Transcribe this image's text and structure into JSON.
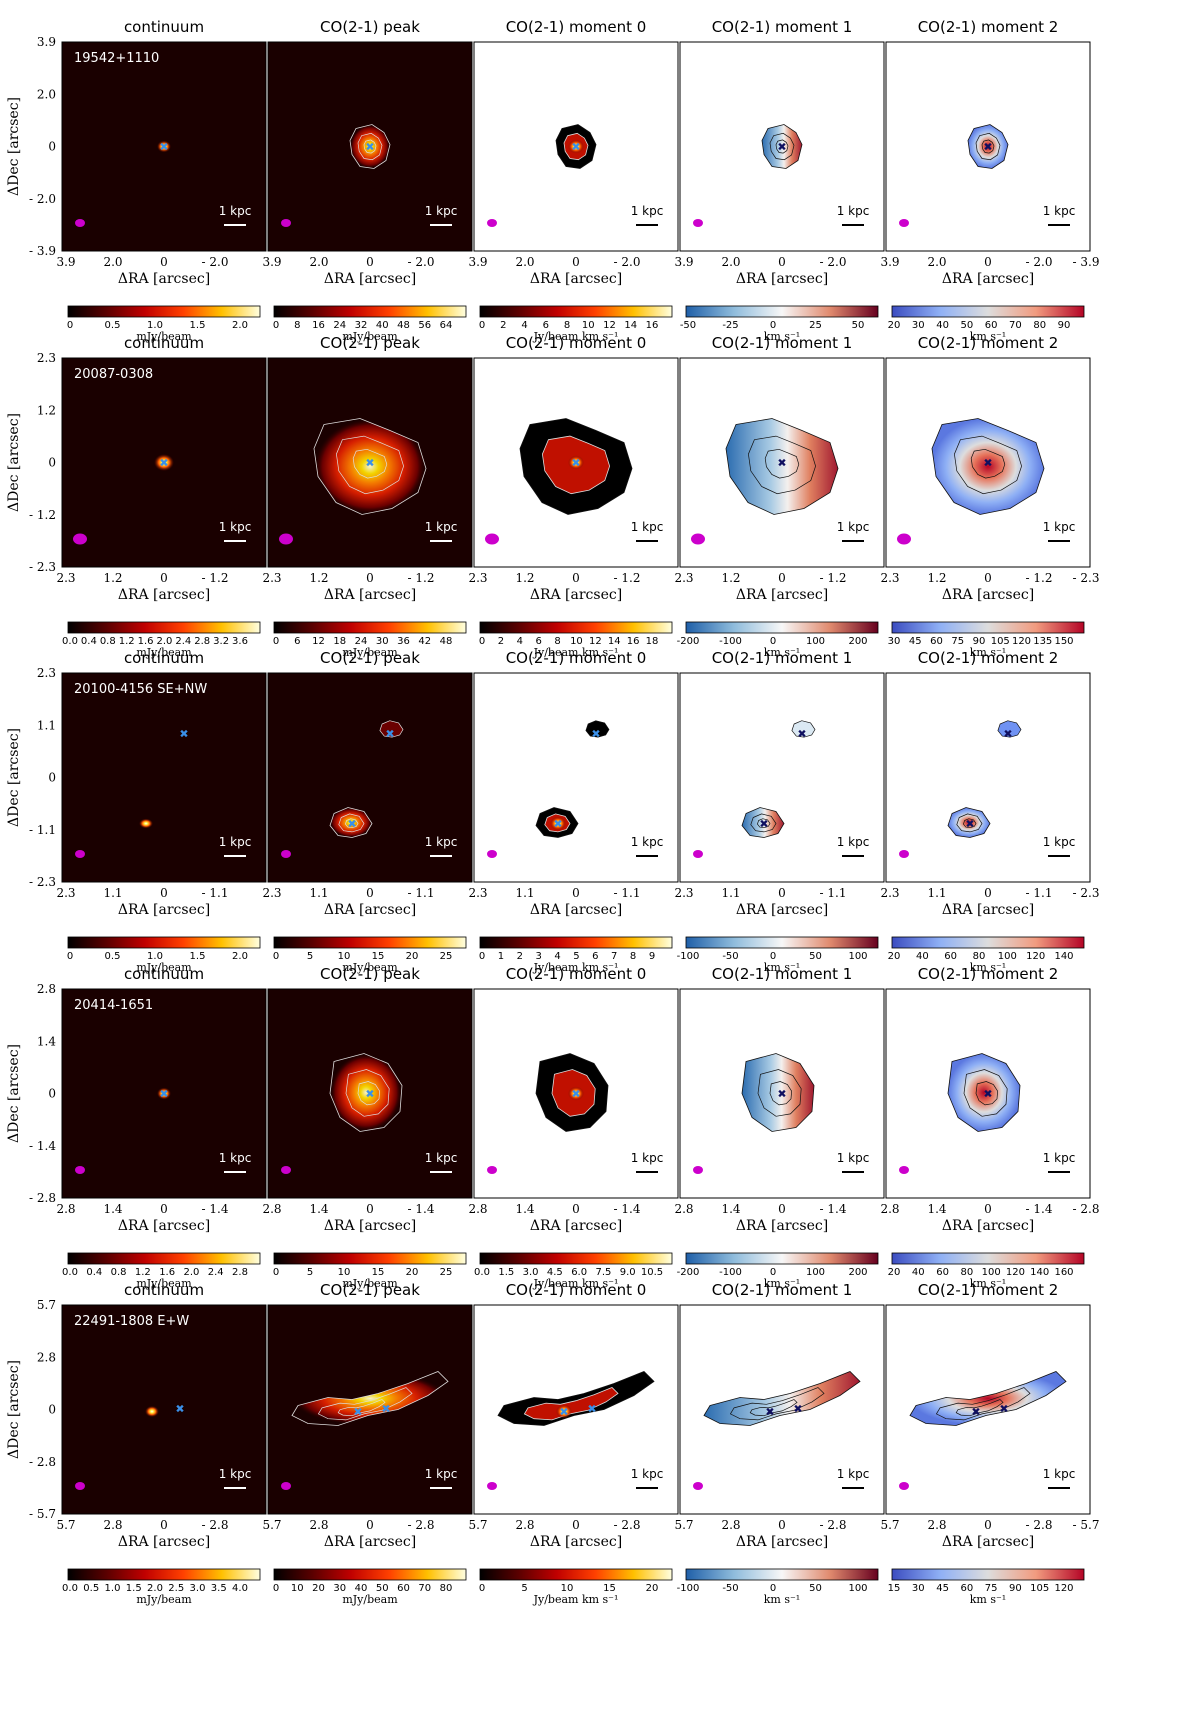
{
  "figure": {
    "panel_titles": [
      "continuum",
      "CO(2-1) peak",
      "CO(2-1) moment 0",
      "CO(2-1) moment 1",
      "CO(2-1) moment 2"
    ],
    "x_axis_label": "ΔRA [arcsec]",
    "y_axis_label": "ΔDec [arcsec]",
    "scale_bar_label": "1 kpc",
    "colormaps": {
      "hot": [
        "#000000",
        "#4a0000",
        "#b00000",
        "#ff3000",
        "#ff9000",
        "#ffe000",
        "#ffffe0"
      ],
      "rdbu": [
        "#1f5fa8",
        "#6fa3cf",
        "#dbe9f3",
        "#f7f7f7",
        "#f5cbb0",
        "#d6604d",
        "#67001f"
      ],
      "coolwarm": [
        "#3b4cc0",
        "#6f92f3",
        "#aac7fd",
        "#dddddd",
        "#f7b89c",
        "#e7745b",
        "#b40426"
      ]
    }
  },
  "chart_data": [
    {
      "type": "image-grid-row",
      "source": "19542+1110",
      "axis_ticks": {
        "x": [
          "3.9",
          "2.0",
          "0",
          "- 2.0",
          "- 3.9"
        ],
        "y": [
          "3.9",
          "2.0",
          "0",
          "- 2.0",
          "- 3.9"
        ]
      },
      "last_x_tick": "- 3.9",
      "colorbars": [
        {
          "label": "mJy/beam",
          "ticks": [
            "0",
            "0.5",
            "1.0",
            "1.5",
            "2.0"
          ]
        },
        {
          "label": "mJy/beam",
          "ticks": [
            "0",
            "8",
            "16",
            "24",
            "32",
            "40",
            "48",
            "56",
            "64"
          ]
        },
        {
          "label": "Jy/beam km s⁻¹",
          "ticks": [
            "0",
            "2",
            "4",
            "6",
            "8",
            "10",
            "12",
            "14",
            "16"
          ]
        },
        {
          "label": "km s⁻¹",
          "ticks": [
            "-50",
            "-25",
            "0",
            "25",
            "50"
          ]
        },
        {
          "label": "km s⁻¹",
          "ticks": [
            "20",
            "30",
            "40",
            "50",
            "60",
            "70",
            "80",
            "90"
          ]
        }
      ]
    },
    {
      "type": "image-grid-row",
      "source": "20087-0308",
      "axis_ticks": {
        "x": [
          "2.3",
          "1.2",
          "0",
          "- 1.2",
          "- 2.3"
        ],
        "y": [
          "2.3",
          "1.2",
          "0",
          "- 1.2",
          "- 2.3"
        ]
      },
      "last_x_tick": "- 2.3",
      "colorbars": [
        {
          "label": "mJy/beam",
          "ticks": [
            "0.0",
            "0.4",
            "0.8",
            "1.2",
            "1.6",
            "2.0",
            "2.4",
            "2.8",
            "3.2",
            "3.6"
          ]
        },
        {
          "label": "mJy/beam",
          "ticks": [
            "0",
            "6",
            "12",
            "18",
            "24",
            "30",
            "36",
            "42",
            "48"
          ]
        },
        {
          "label": "Jy/beam km s⁻¹",
          "ticks": [
            "0",
            "2",
            "4",
            "6",
            "8",
            "10",
            "12",
            "14",
            "16",
            "18"
          ]
        },
        {
          "label": "km s⁻¹",
          "ticks": [
            "-200",
            "-100",
            "0",
            "100",
            "200"
          ]
        },
        {
          "label": "km s⁻¹",
          "ticks": [
            "30",
            "45",
            "60",
            "75",
            "90",
            "105",
            "120",
            "135",
            "150"
          ]
        }
      ]
    },
    {
      "type": "image-grid-row",
      "source": "20100-4156 SE+NW",
      "axis_ticks": {
        "x": [
          "2.3",
          "1.1",
          "0",
          "- 1.1",
          "- 2.3"
        ],
        "y": [
          "2.3",
          "1.1",
          "0",
          "- 1.1",
          "- 2.3"
        ]
      },
      "last_x_tick": "- 2.3",
      "colorbars": [
        {
          "label": "mJy/beam",
          "ticks": [
            "0",
            "0.5",
            "1.0",
            "1.5",
            "2.0"
          ]
        },
        {
          "label": "mJy/beam",
          "ticks": [
            "0",
            "5",
            "10",
            "15",
            "20",
            "25"
          ]
        },
        {
          "label": "Jy/beam km s⁻¹",
          "ticks": [
            "0",
            "1",
            "2",
            "3",
            "4",
            "5",
            "6",
            "7",
            "8",
            "9"
          ]
        },
        {
          "label": "km s⁻¹",
          "ticks": [
            "-100",
            "-50",
            "0",
            "50",
            "100"
          ]
        },
        {
          "label": "km s⁻¹",
          "ticks": [
            "20",
            "40",
            "60",
            "80",
            "100",
            "120",
            "140"
          ]
        }
      ]
    },
    {
      "type": "image-grid-row",
      "source": "20414-1651",
      "axis_ticks": {
        "x": [
          "2.8",
          "1.4",
          "0",
          "- 1.4",
          "- 2.8"
        ],
        "y": [
          "2.8",
          "1.4",
          "0",
          "- 1.4",
          "- 2.8"
        ]
      },
      "last_x_tick": "- 2.8",
      "colorbars": [
        {
          "label": "mJy/beam",
          "ticks": [
            "0.0",
            "0.4",
            "0.8",
            "1.2",
            "1.6",
            "2.0",
            "2.4",
            "2.8"
          ]
        },
        {
          "label": "mJy/beam",
          "ticks": [
            "0",
            "5",
            "10",
            "15",
            "20",
            "25"
          ]
        },
        {
          "label": "Jy/beam km s⁻¹",
          "ticks": [
            "0.0",
            "1.5",
            "3.0",
            "4.5",
            "6.0",
            "7.5",
            "9.0",
            "10.5"
          ]
        },
        {
          "label": "km s⁻¹",
          "ticks": [
            "-200",
            "-100",
            "0",
            "100",
            "200"
          ]
        },
        {
          "label": "km s⁻¹",
          "ticks": [
            "20",
            "40",
            "60",
            "80",
            "100",
            "120",
            "140",
            "160"
          ]
        }
      ]
    },
    {
      "type": "image-grid-row",
      "source": "22491-1808 E+W",
      "axis_ticks": {
        "x": [
          "5.7",
          "2.8",
          "0",
          "- 2.8",
          "- 5.7"
        ],
        "y": [
          "5.7",
          "2.8",
          "0",
          "- 2.8",
          "- 5.7"
        ]
      },
      "last_x_tick": "- 5.7",
      "colorbars": [
        {
          "label": "mJy/beam",
          "ticks": [
            "0.0",
            "0.5",
            "1.0",
            "1.5",
            "2.0",
            "2.5",
            "3.0",
            "3.5",
            "4.0"
          ]
        },
        {
          "label": "mJy/beam",
          "ticks": [
            "0",
            "10",
            "20",
            "30",
            "40",
            "50",
            "60",
            "70",
            "80"
          ]
        },
        {
          "label": "Jy/beam km s⁻¹",
          "ticks": [
            "0",
            "5",
            "10",
            "15",
            "20"
          ]
        },
        {
          "label": "km s⁻¹",
          "ticks": [
            "-100",
            "-50",
            "0",
            "50",
            "100"
          ]
        },
        {
          "label": "km s⁻¹",
          "ticks": [
            "15",
            "30",
            "45",
            "60",
            "75",
            "90",
            "105",
            "120"
          ]
        }
      ]
    }
  ]
}
